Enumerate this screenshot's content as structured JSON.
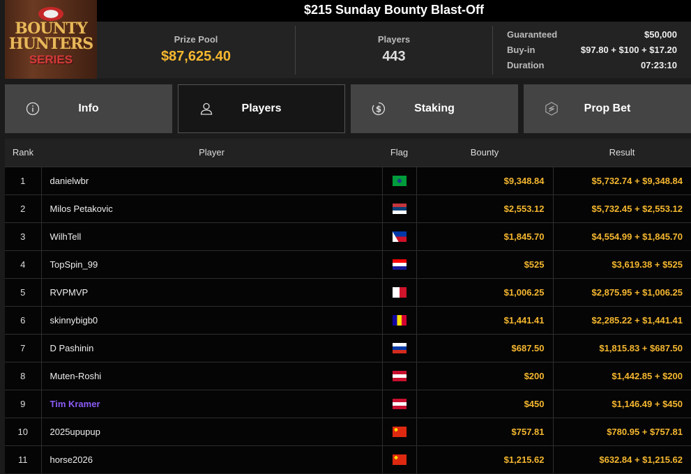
{
  "logo": {
    "text": [
      "BOUNTY",
      "HUNTERS",
      "SERIES"
    ]
  },
  "title": "$215 Sunday Bounty Blast-Off",
  "stats": {
    "prize_pool_label": "Prize Pool",
    "prize_pool": "$87,625.40",
    "players_label": "Players",
    "players": "443",
    "guaranteed_label": "Guaranteed",
    "guaranteed": "$50,000",
    "buyin_label": "Buy-in",
    "buyin": "$97.80 + $100 + $17.20",
    "duration_label": "Duration",
    "duration": "07:23:10"
  },
  "colors": {
    "accent": "#f5b72f",
    "highlight_player": "#8b5cf6"
  },
  "tabs": [
    {
      "label": "Info",
      "icon": "info-icon"
    },
    {
      "label": "Players",
      "icon": "user-icon",
      "active": true
    },
    {
      "label": "Staking",
      "icon": "dollar-icon"
    },
    {
      "label": "Prop Bet",
      "icon": "prop-bet-icon"
    }
  ],
  "table": {
    "headers": [
      "Rank",
      "Player",
      "Flag",
      "Bounty",
      "Result"
    ],
    "rows": [
      {
        "rank": "1",
        "player": "danielwbr",
        "flag": "BR",
        "bounty": "$9,348.84",
        "result": "$5,732.74 + $9,348.84"
      },
      {
        "rank": "2",
        "player": "Milos Petakovic",
        "flag": "RS",
        "bounty": "$2,553.12",
        "result": "$5,732.45 + $2,553.12"
      },
      {
        "rank": "3",
        "player": "WilhTell",
        "flag": "PH",
        "bounty": "$1,845.70",
        "result": "$4,554.99 + $1,845.70"
      },
      {
        "rank": "4",
        "player": "TopSpin_99",
        "flag": "HR",
        "bounty": "$525",
        "result": "$3,619.38 + $525"
      },
      {
        "rank": "5",
        "player": "RVPMVP",
        "flag": "MT",
        "bounty": "$1,006.25",
        "result": "$2,875.95 + $1,006.25"
      },
      {
        "rank": "6",
        "player": "skinnybigb0",
        "flag": "AD",
        "bounty": "$1,441.41",
        "result": "$2,285.22 + $1,441.41"
      },
      {
        "rank": "7",
        "player": "D Pashinin",
        "flag": "RU",
        "bounty": "$687.50",
        "result": "$1,815.83 + $687.50"
      },
      {
        "rank": "8",
        "player": "Muten-Roshi",
        "flag": "AT",
        "bounty": "$200",
        "result": "$1,442.85 + $200"
      },
      {
        "rank": "9",
        "player": "Tim Kramer",
        "flag": "AT",
        "bounty": "$450",
        "result": "$1,146.49 + $450",
        "highlight": true
      },
      {
        "rank": "10",
        "player": "2025upupup",
        "flag": "CN",
        "bounty": "$757.81",
        "result": "$780.95 + $757.81"
      },
      {
        "rank": "11",
        "player": "horse2026",
        "flag": "CN",
        "bounty": "$1,215.62",
        "result": "$632.84 + $1,215.62"
      }
    ]
  }
}
